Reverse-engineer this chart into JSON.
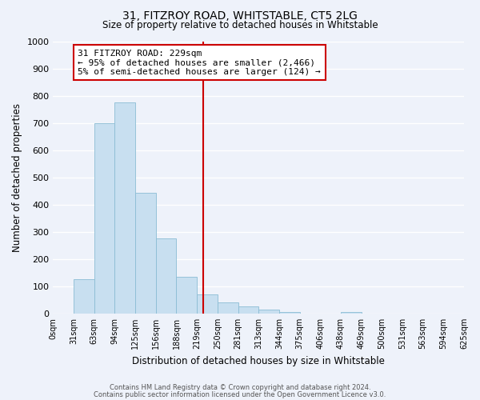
{
  "title": "31, FITZROY ROAD, WHITSTABLE, CT5 2LG",
  "subtitle": "Size of property relative to detached houses in Whitstable",
  "xlabel": "Distribution of detached houses by size in Whitstable",
  "ylabel": "Number of detached properties",
  "footer_line1": "Contains HM Land Registry data © Crown copyright and database right 2024.",
  "footer_line2": "Contains public sector information licensed under the Open Government Licence v3.0.",
  "bin_labels": [
    "0sqm",
    "31sqm",
    "63sqm",
    "94sqm",
    "125sqm",
    "156sqm",
    "188sqm",
    "219sqm",
    "250sqm",
    "281sqm",
    "313sqm",
    "344sqm",
    "375sqm",
    "406sqm",
    "438sqm",
    "469sqm",
    "500sqm",
    "531sqm",
    "563sqm",
    "594sqm",
    "625sqm"
  ],
  "bar_values": [
    0,
    127,
    700,
    775,
    443,
    275,
    135,
    70,
    42,
    25,
    15,
    5,
    0,
    0,
    5,
    0,
    0,
    0,
    0,
    0
  ],
  "bar_color": "#c8dff0",
  "bar_edge_color": "#8bbcd4",
  "ylim": [
    0,
    1000
  ],
  "yticks": [
    0,
    100,
    200,
    300,
    400,
    500,
    600,
    700,
    800,
    900,
    1000
  ],
  "bin_edges": [
    0,
    31,
    63,
    94,
    125,
    156,
    188,
    219,
    250,
    281,
    313,
    344,
    375,
    406,
    438,
    469,
    500,
    531,
    563,
    594,
    625
  ],
  "property_size": 229,
  "vline_color": "#cc0000",
  "annotation_title": "31 FITZROY ROAD: 229sqm",
  "annotation_line1": "← 95% of detached houses are smaller (2,466)",
  "annotation_line2": "5% of semi-detached houses are larger (124) →",
  "annotation_box_color": "#ffffff",
  "annotation_box_edge": "#cc0000",
  "background_color": "#eef2fa",
  "grid_color": "#ffffff"
}
